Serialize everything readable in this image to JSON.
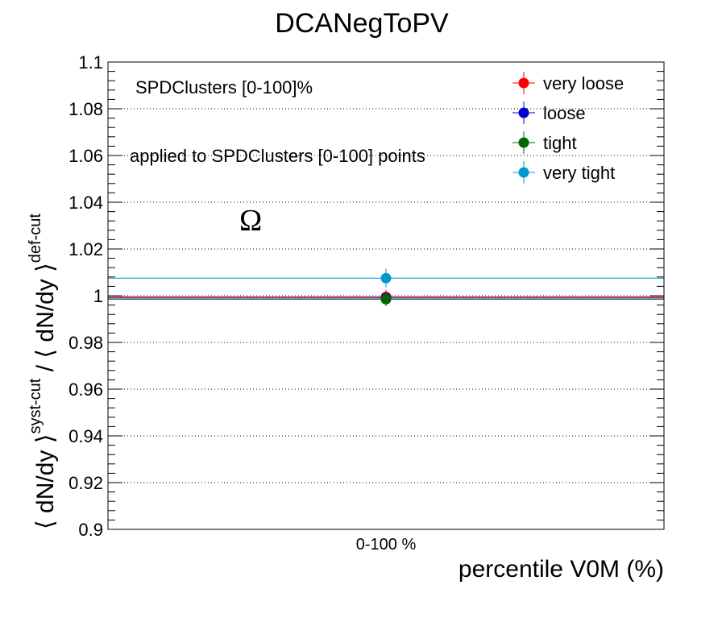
{
  "chart_data": {
    "type": "scatter",
    "title": "DCANegToPV",
    "xlabel": "percentile V0M (%)",
    "ylabel": {
      "prefix": "⟨ dN/dy ⟩",
      "sup1": "syst-cut",
      "mid": " / ⟨ dN/dy ⟩",
      "sup2": "def-cut"
    },
    "categories": [
      "0-100 %"
    ],
    "ylim": [
      0.9,
      1.1
    ],
    "yticks": [
      "0.9",
      "0.92",
      "0.94",
      "0.96",
      "0.98",
      "1",
      "1.02",
      "1.04",
      "1.06",
      "1.08",
      "1.1"
    ],
    "grid": "y",
    "legend_position": "top-right",
    "annotations": {
      "header": "SPDClusters [0-100]%",
      "note": "applied to SPDClusters [0-100] points",
      "particle": "Ω"
    },
    "series": [
      {
        "name": "very loose",
        "color": "#ff0000",
        "values": [
          0.9995
        ],
        "error": [
          0.003
        ],
        "line": 0.9995
      },
      {
        "name": "loose",
        "color": "#0000cc",
        "values": [
          0.999
        ],
        "error": [
          0.003
        ],
        "line": 0.999
      },
      {
        "name": "tight",
        "color": "#006600",
        "values": [
          0.9985
        ],
        "error": [
          0.003
        ],
        "line": 0.9985
      },
      {
        "name": "very tight",
        "color": "#0099cc",
        "values": [
          1.0075
        ],
        "error": [
          0.004
        ],
        "line": 1.0075
      }
    ]
  }
}
